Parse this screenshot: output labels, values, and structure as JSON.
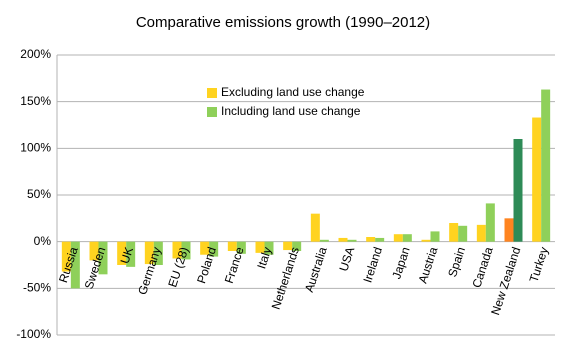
{
  "chart_data": {
    "type": "bar",
    "title": "Comparative emissions growth (1990–2012)",
    "categories": [
      "Russia",
      "Sweden",
      "UK",
      "Germany",
      "EU (28)",
      "Poland",
      "France",
      "Italy",
      "Netherlands",
      "Australia",
      "USA",
      "Ireland",
      "Japan",
      "Austria",
      "Spain",
      "Canada",
      "New Zealand",
      "Turkey"
    ],
    "series": [
      {
        "name": "Excluding land use change",
        "color": "#ffd320",
        "colors": [
          "#ffd320",
          "#ffd320",
          "#ffd320",
          "#ffd320",
          "#ffd320",
          "#ffd320",
          "#ffd320",
          "#ffd320",
          "#ffd320",
          "#ffd320",
          "#ffd320",
          "#ffd320",
          "#ffd320",
          "#ffd320",
          "#ffd320",
          "#ffd320",
          "#ff8420",
          "#ffd320"
        ],
        "values": [
          -32,
          -20,
          -25,
          -24,
          -18,
          -14,
          -10,
          -12,
          -9,
          30,
          4,
          5,
          8,
          2,
          20,
          18,
          25,
          133
        ]
      },
      {
        "name": "Including land use change",
        "color": "#8fd05a",
        "colors": [
          "#8fd05a",
          "#8fd05a",
          "#8fd05a",
          "#8fd05a",
          "#8fd05a",
          "#8fd05a",
          "#8fd05a",
          "#8fd05a",
          "#8fd05a",
          "#8fd05a",
          "#8fd05a",
          "#8fd05a",
          "#8fd05a",
          "#8fd05a",
          "#8fd05a",
          "#8fd05a",
          "#2e8b57",
          "#8fd05a"
        ],
        "values": [
          -50,
          -35,
          -27,
          -25,
          -19,
          -16,
          -13,
          -14,
          -10,
          2,
          2,
          4,
          8,
          11,
          17,
          41,
          110,
          163
        ]
      }
    ],
    "ylim": [
      -100,
      200
    ],
    "yticks": [
      {
        "value": -100,
        "label": "-100%"
      },
      {
        "value": -50,
        "label": "-50%"
      },
      {
        "value": 0,
        "label": "0%"
      },
      {
        "value": 50,
        "label": "50%"
      },
      {
        "value": 100,
        "label": "100%"
      },
      {
        "value": 150,
        "label": "150%"
      },
      {
        "value": 200,
        "label": "200%"
      }
    ],
    "grid": true
  }
}
